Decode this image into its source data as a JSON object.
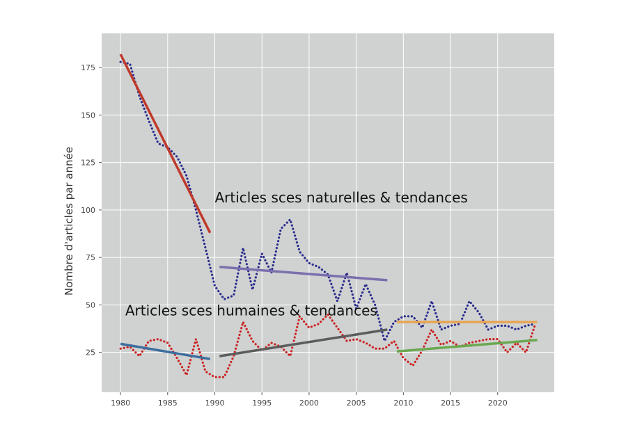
{
  "chart_data": {
    "type": "line",
    "title": "",
    "xlabel": "",
    "ylabel": "Nombre d'articles par année",
    "xlim": [
      1978,
      2026
    ],
    "ylim": [
      4,
      193
    ],
    "x_ticks": [
      1980,
      1985,
      1990,
      1995,
      2000,
      2005,
      2010,
      2015,
      2020
    ],
    "y_ticks": [
      25,
      50,
      75,
      100,
      125,
      150,
      175
    ],
    "grid": true,
    "background": "#cfd2d1",
    "annotations": [
      {
        "text": "Articles sces naturelles & tendances",
        "x": 1990,
        "y": 104
      },
      {
        "text": "Articles sces humaines & tendances",
        "x": 1980.5,
        "y": 44.5
      }
    ],
    "series": [
      {
        "style": "dotted",
        "color": "#2b2b8c",
        "x": [
          1980,
          1981,
          1982,
          1983,
          1984,
          1985,
          1986,
          1987,
          1988,
          1989,
          1990,
          1991,
          1992,
          1993,
          1994,
          1995,
          1996,
          1997,
          1998,
          1999,
          2000,
          2001,
          2002,
          2003,
          2004,
          2005,
          2006,
          2007,
          2008,
          2009,
          2010,
          2011,
          2012,
          2013,
          2014,
          2015,
          2016,
          2017,
          2018,
          2019,
          2020,
          2021,
          2022,
          2023,
          2024
        ],
        "values": [
          178,
          177,
          160,
          147,
          135,
          133,
          128,
          118,
          100,
          80,
          60,
          53,
          55,
          80,
          58,
          77,
          67,
          90,
          95,
          78,
          72,
          70,
          66,
          52,
          67,
          48,
          61,
          50,
          31,
          41,
          44,
          44,
          38,
          52,
          37,
          39,
          40,
          52,
          46,
          37,
          39,
          39,
          37,
          39,
          40
        ]
      },
      {
        "style": "dotted",
        "color": "#cc2222",
        "x": [
          1980,
          1981,
          1982,
          1983,
          1984,
          1985,
          1986,
          1987,
          1988,
          1989,
          1990,
          1991,
          1992,
          1993,
          1994,
          1995,
          1996,
          1997,
          1998,
          1999,
          2000,
          2001,
          2002,
          2003,
          2004,
          2005,
          2006,
          2007,
          2008,
          2009,
          2010,
          2011,
          2012,
          2013,
          2014,
          2015,
          2016,
          2017,
          2018,
          2019,
          2020,
          2021,
          2022,
          2023,
          2024
        ],
        "values": [
          27,
          28,
          23,
          31,
          32,
          30,
          22,
          13,
          32,
          15,
          12,
          12,
          23,
          41,
          31,
          26,
          30,
          28,
          23,
          44,
          38,
          40,
          45,
          38,
          31,
          32,
          30,
          27,
          27,
          31,
          22,
          18,
          26,
          37,
          29,
          31,
          28,
          30,
          31,
          32,
          32,
          25,
          30,
          25,
          40
        ]
      },
      {
        "style": "solid",
        "color": "#c0392b",
        "x": [
          1980,
          1989.5
        ],
        "values": [
          182,
          88
        ]
      },
      {
        "style": "solid",
        "color": "#7b6fae",
        "x": [
          1990.5,
          2008.3
        ],
        "values": [
          70,
          63
        ]
      },
      {
        "style": "solid",
        "color": "#e8a552",
        "x": [
          2009.3,
          2024.2
        ],
        "values": [
          41,
          41
        ]
      },
      {
        "style": "solid",
        "color": "#3e6e9e",
        "x": [
          1980,
          1989.5
        ],
        "values": [
          29.5,
          21.5
        ]
      },
      {
        "style": "solid",
        "color": "#5c5c5c",
        "x": [
          1990.5,
          2008.3
        ],
        "values": [
          23,
          37
        ]
      },
      {
        "style": "solid",
        "color": "#6aa84f",
        "x": [
          2009.3,
          2024.2
        ],
        "values": [
          25.5,
          31.5
        ]
      }
    ]
  }
}
